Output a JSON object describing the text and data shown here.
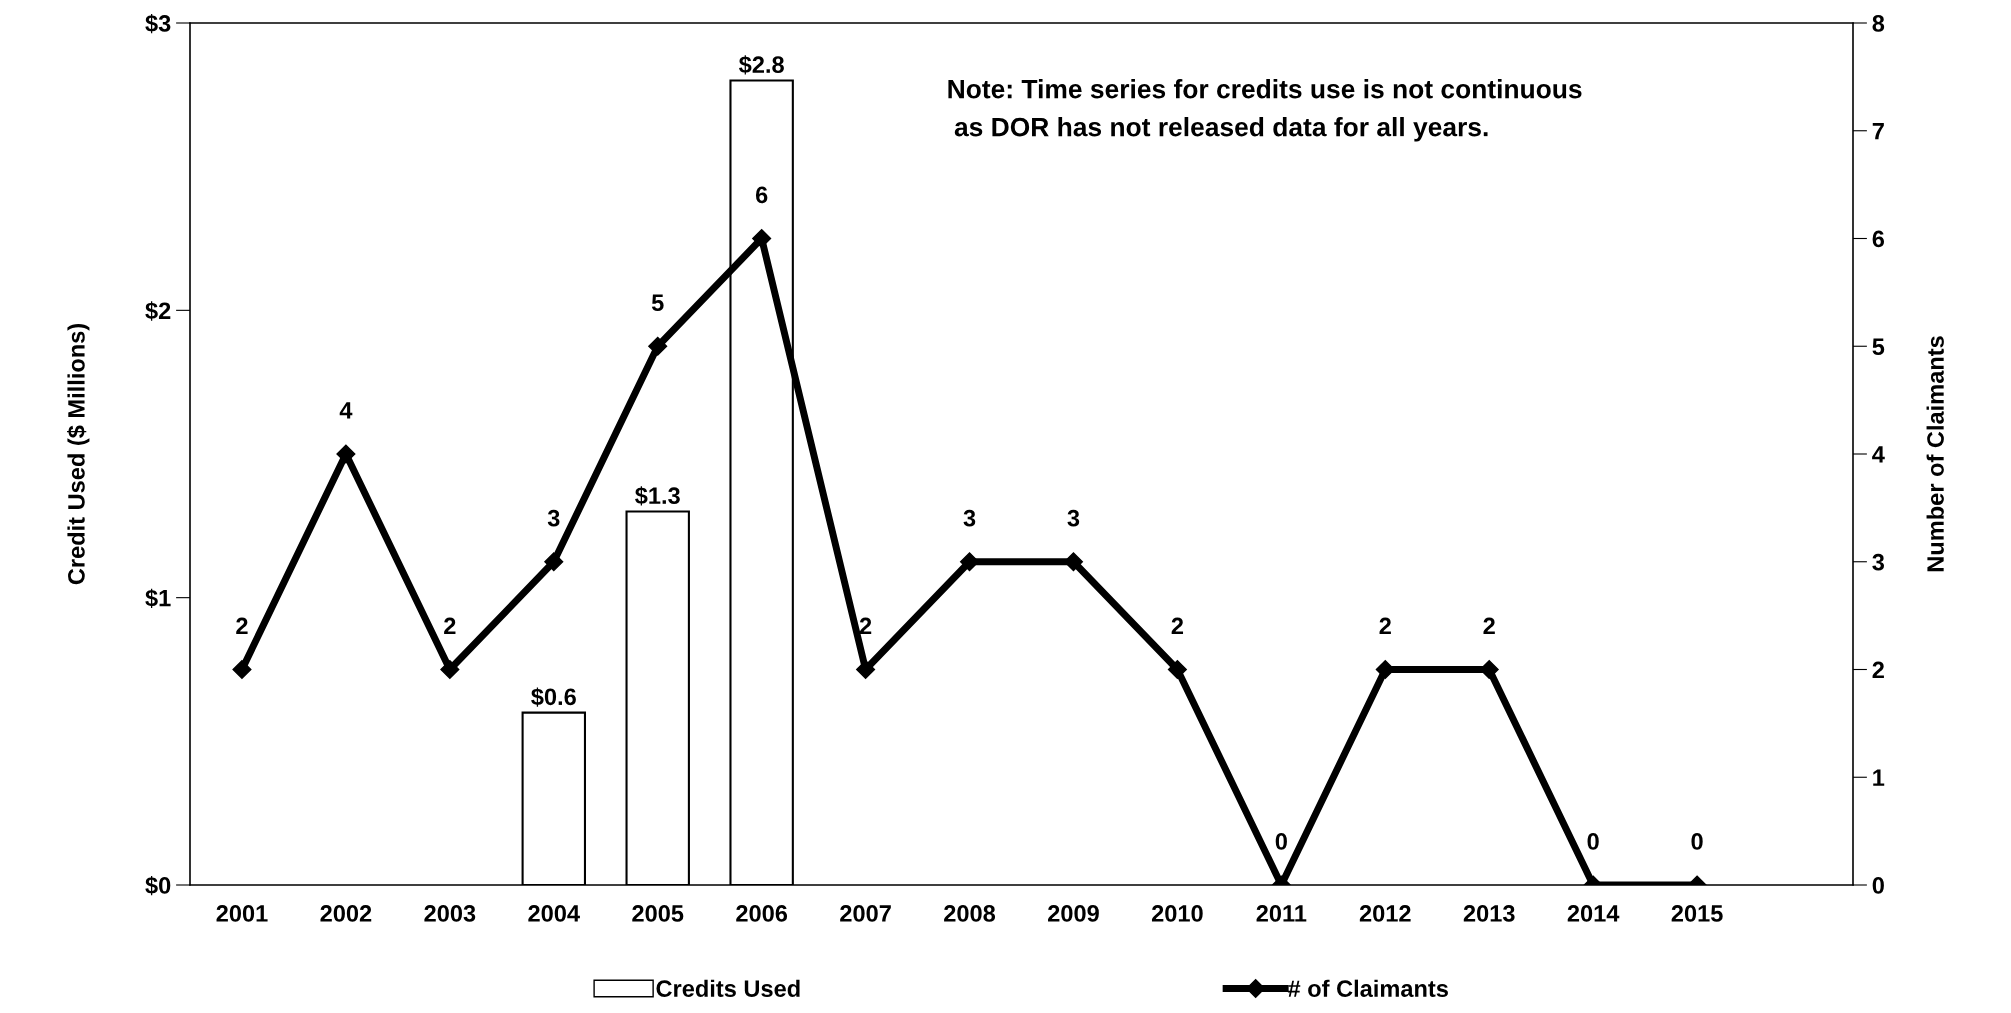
{
  "chart_data": {
    "type": "bar",
    "categories": [
      "2001",
      "2002",
      "2003",
      "2004",
      "2005",
      "2006",
      "2007",
      "2008",
      "2009",
      "2010",
      "2011",
      "2012",
      "2013",
      "2014",
      "2015",
      null
    ],
    "series": [
      {
        "name": "Credits Used",
        "color": "#ffffff",
        "values": [
          null,
          null,
          null,
          0.6,
          1.3,
          2.8,
          null,
          null,
          null,
          null,
          null,
          null,
          null,
          null,
          null,
          null
        ],
        "value_labels": [
          null,
          null,
          null,
          "$0.6",
          "$1.3",
          "$2.8",
          null,
          null,
          null,
          null,
          null,
          null,
          null,
          null,
          null,
          null
        ]
      },
      {
        "name": "# of Claimants",
        "type": "line",
        "axis": "y2",
        "color": "#000000",
        "marker": "diamond",
        "values": [
          2,
          4,
          2,
          3,
          5,
          6,
          2,
          3,
          3,
          2,
          0,
          2,
          2,
          0,
          0,
          null
        ],
        "value_labels": [
          "2",
          "4",
          "2",
          "3",
          "5",
          "6",
          "2",
          "3",
          "3",
          "2",
          "0",
          "2",
          "2",
          "0",
          "0",
          null
        ]
      }
    ],
    "ylabel": "Credit Used ($ Millions)",
    "y2label": "Number of Claimants",
    "ylim": [
      0,
      3
    ],
    "yticks": [
      {
        "value": 0,
        "label": "$0"
      },
      {
        "value": 1,
        "label": "$1"
      },
      {
        "value": 2,
        "label": "$2"
      },
      {
        "value": 3,
        "label": "$3"
      }
    ],
    "y2lim": [
      0,
      8
    ],
    "y2ticks": [
      0,
      1,
      2,
      3,
      4,
      5,
      6,
      7,
      8
    ],
    "annotations": [
      "Note: Time series for credits use is not continuous\n as DOR has not released data for all years."
    ],
    "legend": "bottom",
    "grid": false
  }
}
